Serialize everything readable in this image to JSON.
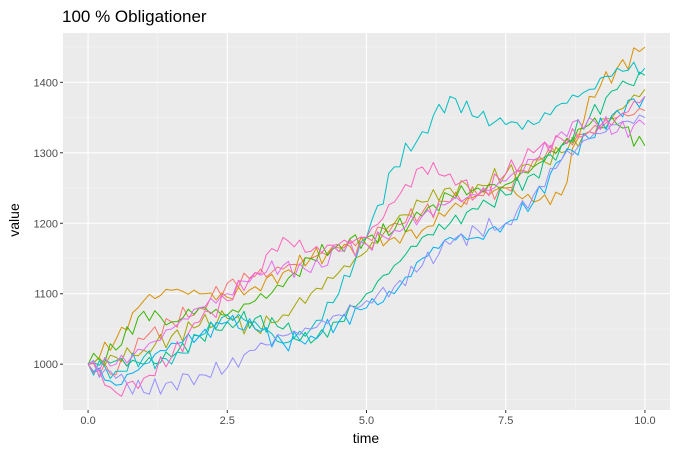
{
  "chart_data": {
    "type": "line",
    "title": "100 % Obligationer",
    "xlabel": "time",
    "ylabel": "value",
    "xlim": [
      -0.45,
      10.45
    ],
    "ylim": [
      935,
      1470
    ],
    "xticks": [
      0.0,
      2.5,
      5.0,
      7.5,
      10.0
    ],
    "xtick_labels": [
      "0.0",
      "2.5",
      "5.0",
      "7.5",
      "10.0"
    ],
    "yticks": [
      1000,
      1100,
      1200,
      1300,
      1400
    ],
    "ytick_labels": [
      "1000",
      "1100",
      "1200",
      "1300",
      "1400"
    ],
    "grid": true,
    "legend": "none",
    "x": [
      0,
      0.5,
      1,
      1.5,
      2,
      2.5,
      3,
      3.5,
      4,
      4.5,
      5,
      5.5,
      6,
      6.5,
      7,
      7.5,
      8,
      8.5,
      9,
      9.5,
      10
    ],
    "series": [
      {
        "color": "#F8766D",
        "values": [
          1000,
          985,
          1035,
          1060,
          1080,
          1115,
          1125,
          1135,
          1150,
          1165,
          1180,
          1200,
          1215,
          1230,
          1240,
          1250,
          1290,
          1310,
          1330,
          1350,
          1360
        ]
      },
      {
        "color": "#D89000",
        "values": [
          1000,
          1035,
          1090,
          1105,
          1100,
          1095,
          1110,
          1130,
          1150,
          1160,
          1170,
          1180,
          1190,
          1220,
          1240,
          1250,
          1230,
          1240,
          1380,
          1420,
          1450
        ]
      },
      {
        "color": "#A3A500",
        "values": [
          1000,
          1010,
          1020,
          1040,
          1055,
          1065,
          1050,
          1070,
          1100,
          1130,
          1160,
          1200,
          1230,
          1250,
          1255,
          1270,
          1280,
          1300,
          1330,
          1360,
          1390
        ]
      },
      {
        "color": "#39B600",
        "values": [
          1000,
          1020,
          1075,
          1060,
          1080,
          1070,
          1090,
          1110,
          1150,
          1170,
          1180,
          1190,
          1210,
          1240,
          1250,
          1255,
          1280,
          1310,
          1340,
          1340,
          1310
        ]
      },
      {
        "color": "#00BF7D",
        "values": [
          1000,
          1005,
          1000,
          1010,
          1040,
          1060,
          1065,
          1050,
          1030,
          1060,
          1100,
          1140,
          1180,
          1200,
          1220,
          1240,
          1270,
          1310,
          1350,
          1390,
          1410
        ]
      },
      {
        "color": "#00BFC4",
        "values": [
          1000,
          990,
          1010,
          1000,
          1040,
          1070,
          1060,
          1030,
          1050,
          1100,
          1180,
          1280,
          1330,
          1380,
          1350,
          1340,
          1340,
          1370,
          1390,
          1420,
          1420
        ]
      },
      {
        "color": "#00B0F6",
        "values": [
          1000,
          970,
          1000,
          1030,
          1040,
          1060,
          1050,
          1030,
          1040,
          1060,
          1080,
          1100,
          1150,
          1180,
          1180,
          1200,
          1230,
          1290,
          1320,
          1360,
          1380
        ]
      },
      {
        "color": "#9590FF",
        "values": [
          1000,
          980,
          960,
          975,
          985,
          995,
          1020,
          1040,
          1050,
          1070,
          1090,
          1110,
          1140,
          1170,
          1190,
          1200,
          1240,
          1290,
          1320,
          1340,
          1350
        ]
      },
      {
        "color": "#E76BF3",
        "values": [
          1000,
          1000,
          1020,
          1050,
          1080,
          1100,
          1130,
          1140,
          1130,
          1160,
          1170,
          1190,
          1210,
          1230,
          1240,
          1260,
          1290,
          1330,
          1350,
          1330,
          1340
        ]
      },
      {
        "color": "#FF62BC",
        "values": [
          1000,
          960,
          980,
          1010,
          1060,
          1090,
          1130,
          1180,
          1160,
          1170,
          1180,
          1230,
          1280,
          1270,
          1240,
          1270,
          1300,
          1320,
          1330,
          1350,
          1380
        ]
      }
    ]
  }
}
